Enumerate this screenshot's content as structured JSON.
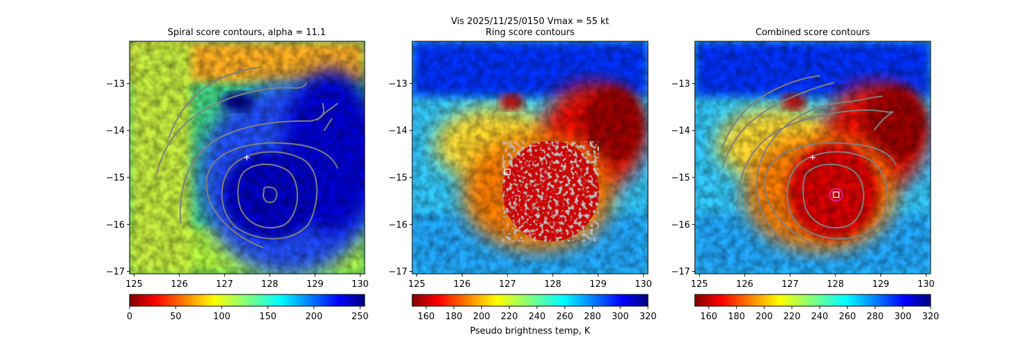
{
  "suptitle": "Vis  2025/11/25/0150    Vmax = 55 kt",
  "colorbar_label": "Pseudo brightness temp, K",
  "chart_data": [
    {
      "type": "heatmap",
      "title": "Spiral score contours, alpha = 11.1",
      "colormap": "jet_reversed",
      "xlim": [
        124.9,
        130.1
      ],
      "ylim": [
        -17.05,
        -12.1
      ],
      "xticks": [
        125,
        126,
        127,
        128,
        129,
        130
      ],
      "yticks": [
        -13,
        -14,
        -15,
        -16,
        -17
      ],
      "xtick_labels": [
        "125",
        "126",
        "127",
        "128",
        "129",
        "130"
      ],
      "ytick_labels": [
        "−13",
        "−14",
        "−15",
        "−16",
        "−17"
      ],
      "colorbar": {
        "min": 0,
        "max": 255,
        "ticks": [
          0,
          50,
          100,
          150,
          200,
          250
        ],
        "labels": [
          "0",
          "50",
          "100",
          "150",
          "200",
          "250"
        ]
      },
      "center": [
        128.0,
        -15.4
      ],
      "marker_plus": [
        127.45,
        -14.58
      ],
      "contour_color": "#808080"
    },
    {
      "type": "heatmap",
      "title": "Ring score contours",
      "colormap": "jet_reversed",
      "xlim": [
        124.9,
        130.1
      ],
      "ylim": [
        -17.05,
        -12.1
      ],
      "xticks": [
        125,
        126,
        127,
        128,
        129,
        130
      ],
      "yticks": [
        -13,
        -14,
        -15,
        -16,
        -17
      ],
      "xtick_labels": [
        "125",
        "126",
        "127",
        "128",
        "129",
        "130"
      ],
      "ytick_labels": [
        "−13",
        "−14",
        "−15",
        "−16",
        "−17"
      ],
      "colorbar": {
        "min": 150,
        "max": 320,
        "ticks": [
          160,
          180,
          200,
          220,
          240,
          260,
          280,
          300,
          320
        ],
        "labels": [
          "160",
          "180",
          "200",
          "220",
          "240",
          "260",
          "280",
          "300",
          "320"
        ]
      },
      "center": [
        128.0,
        -15.4
      ],
      "marker_square": [
        126.95,
        -14.9
      ],
      "ring_region": {
        "cx": 128.0,
        "cy": -15.3,
        "rx": 1.05,
        "ry": 1.05
      },
      "contour_color": "#808080"
    },
    {
      "type": "heatmap",
      "title": "Combined score contours",
      "colormap": "jet_reversed",
      "xlim": [
        124.9,
        130.1
      ],
      "ylim": [
        -17.05,
        -12.1
      ],
      "xticks": [
        125,
        126,
        127,
        128,
        129,
        130
      ],
      "yticks": [
        -13,
        -14,
        -15,
        -16,
        -17
      ],
      "xtick_labels": [
        "125",
        "126",
        "127",
        "128",
        "129",
        "130"
      ],
      "ytick_labels": [
        "−13",
        "−14",
        "−15",
        "−16",
        "−17"
      ],
      "colorbar": {
        "min": 150,
        "max": 320,
        "ticks": [
          160,
          180,
          200,
          220,
          240,
          260,
          280,
          300,
          320
        ],
        "labels": [
          "160",
          "180",
          "200",
          "220",
          "240",
          "260",
          "280",
          "300",
          "320"
        ]
      },
      "center": [
        128.0,
        -15.4
      ],
      "marker_plus": [
        127.45,
        -14.58
      ],
      "marker_square": [
        127.98,
        -15.38
      ],
      "marker_circle": [
        127.98,
        -15.38
      ],
      "circle_color": "#e0208a",
      "contour_color": "#808080"
    }
  ]
}
